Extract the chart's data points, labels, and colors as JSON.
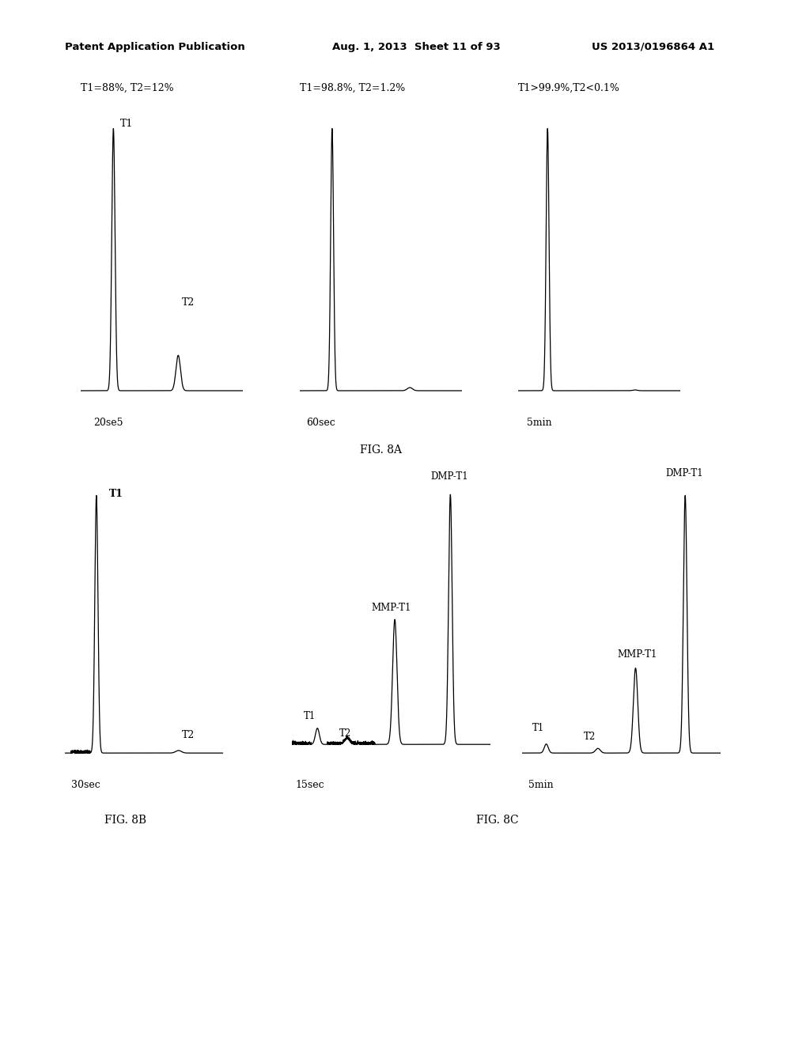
{
  "bg_color": "#ffffff",
  "header_text1": "Patent Application Publication",
  "header_text2": "Aug. 1, 2013  Sheet 11 of 93",
  "header_text3": "US 2013/0196864 A1",
  "fig8a_label": "FIG. 8A",
  "fig8b_label": "FIG. 8B",
  "fig8c_label": "FIG. 8C",
  "panel_titles": [
    "T1=88%, T2=12%",
    "T1=98.8%, T2=1.2%",
    "T1>99.9%,T2<0.1%"
  ],
  "panel_xlabels": [
    "20se5",
    "60sec",
    "5min"
  ],
  "panel_b_xlabel": "30sec",
  "panel_c_xlabels": [
    "15sec",
    "5min"
  ]
}
